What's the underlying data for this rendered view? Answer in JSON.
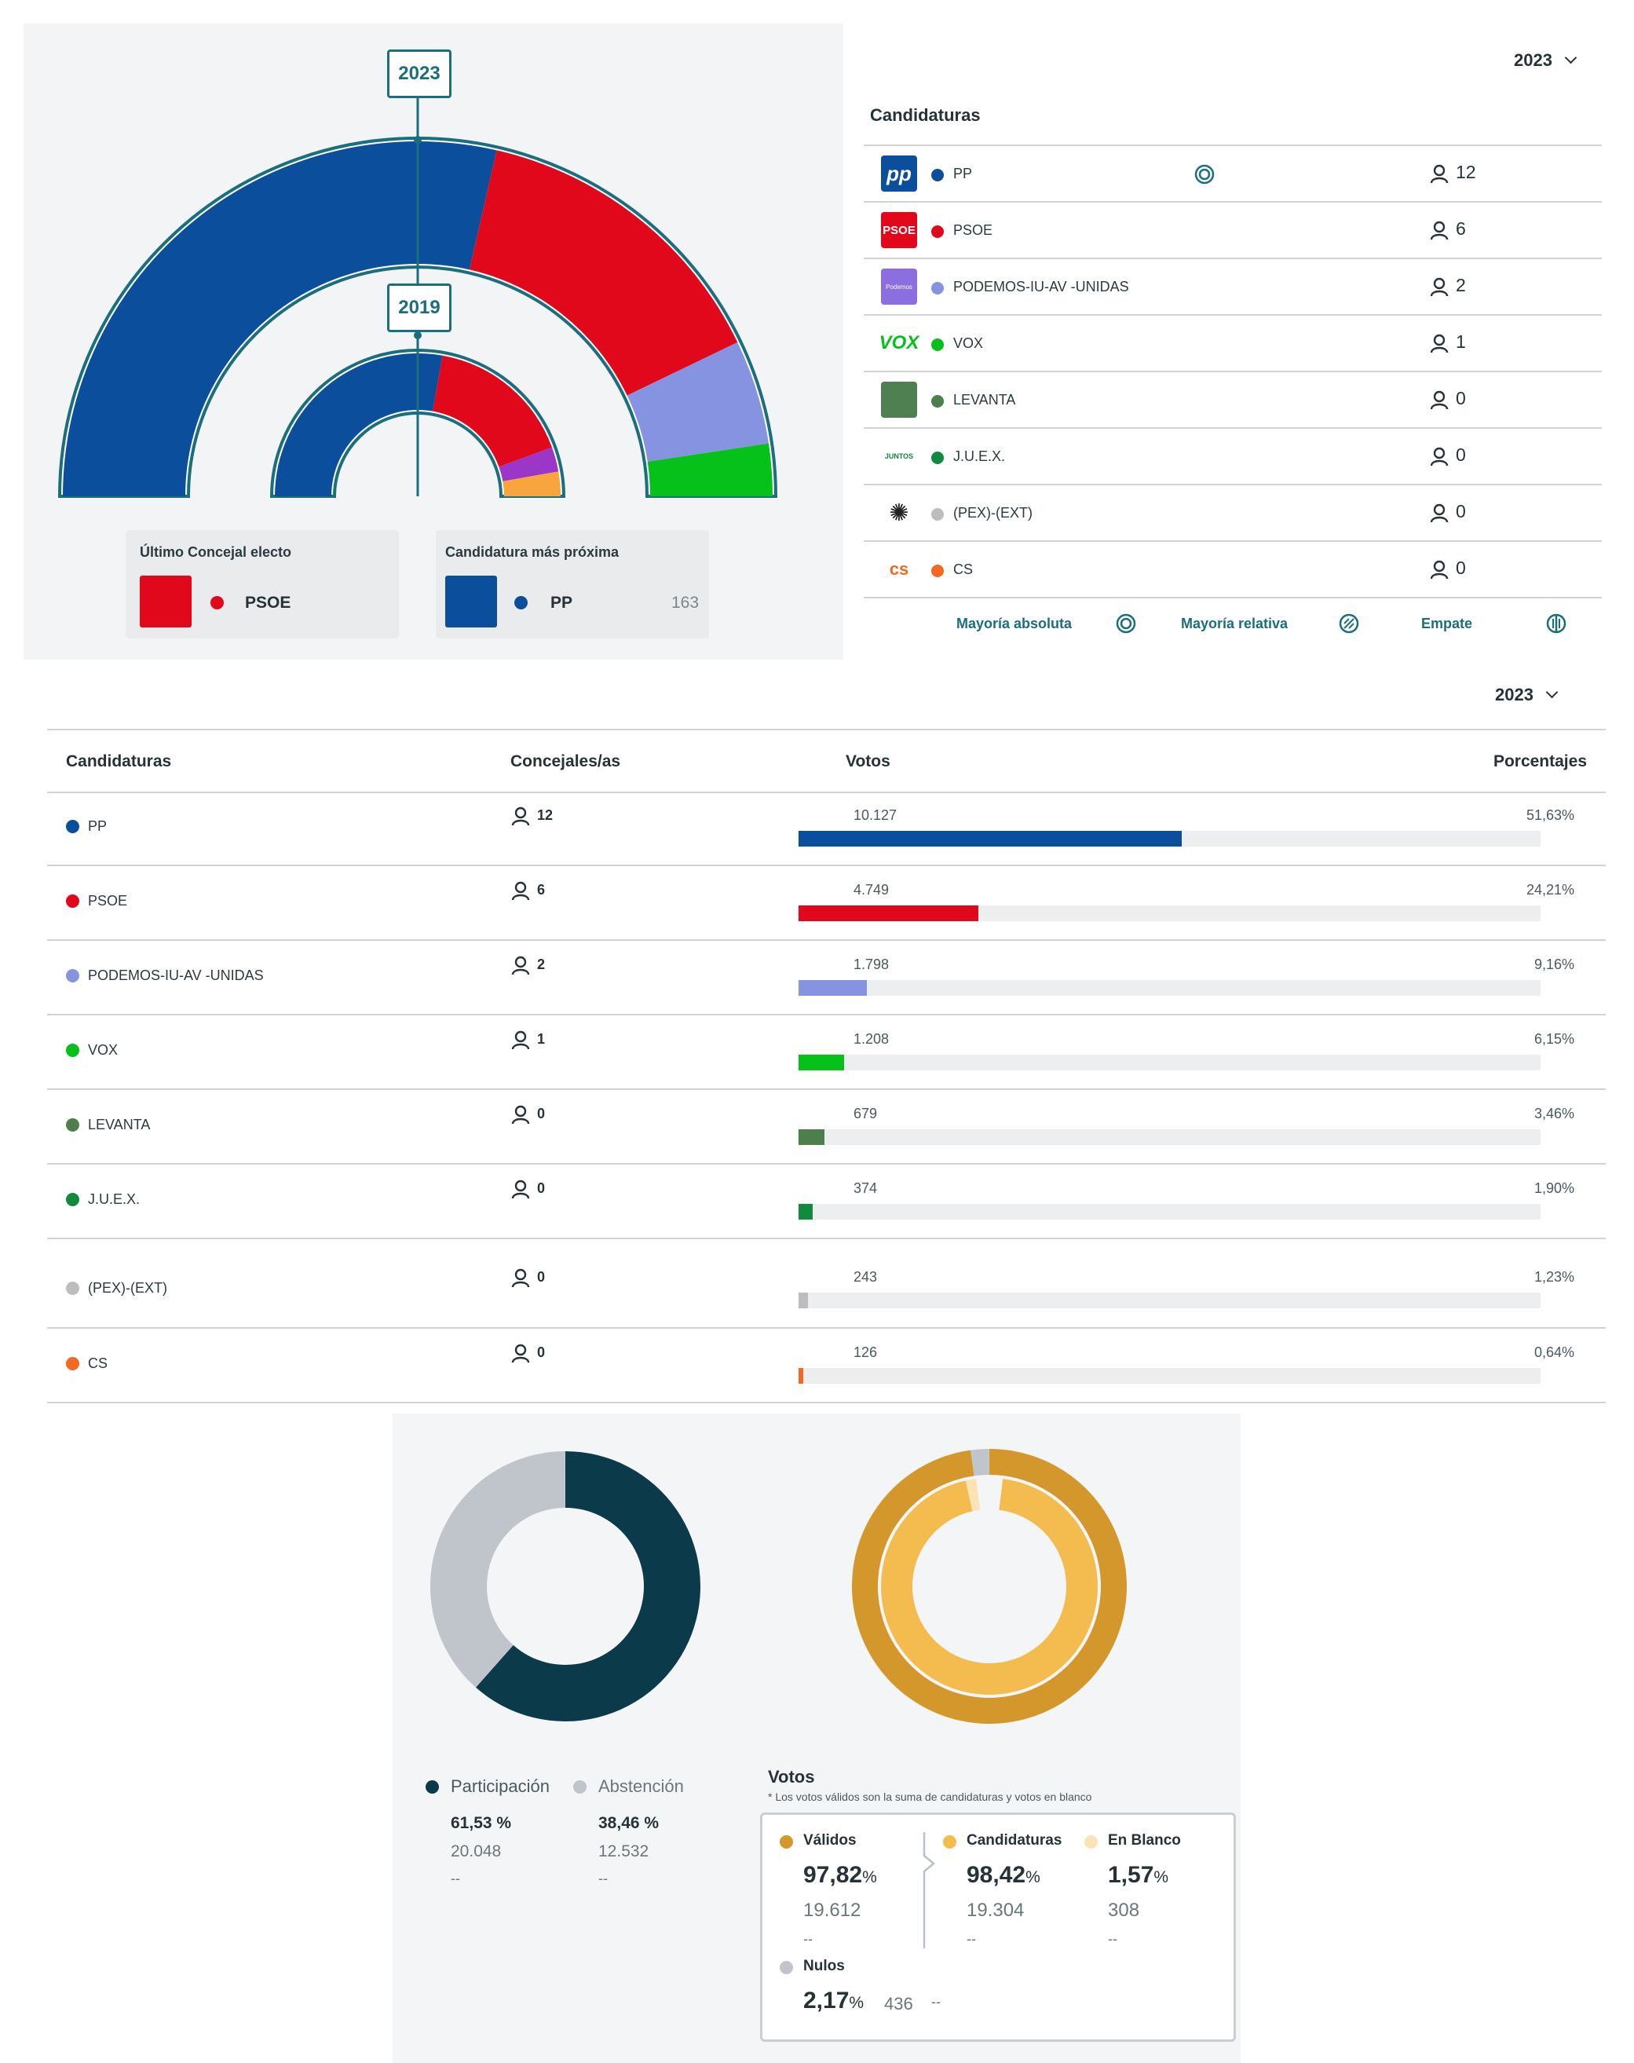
{
  "hemicycle": {
    "year_outer": "2023",
    "year_inner": "2019",
    "outer_arcs": [
      {
        "party": "PP",
        "seats": 12,
        "color": "#0b4f9c"
      },
      {
        "party": "PSOE",
        "seats": 6,
        "color": "#e1081c"
      },
      {
        "party": "PODEMOS-IU-AV -UNIDAS",
        "seats": 2,
        "color": "#8693e0"
      },
      {
        "party": "VOX",
        "seats": 1,
        "color": "#06c11a"
      }
    ],
    "inner_arcs": [
      {
        "party": "PP",
        "seats": 10,
        "color": "#0b4f9c"
      },
      {
        "party": "PSOE",
        "seats": 6,
        "color": "#e1081c"
      },
      {
        "party": "Purple",
        "seats": 1,
        "color": "#9b36c9"
      },
      {
        "party": "Orange",
        "seats": 1,
        "color": "#f9a53e"
      }
    ],
    "ultimo": {
      "title": "Último Concejal electo",
      "party": "PSOE",
      "color": "#e1081c"
    },
    "proxima": {
      "title": "Candidatura más próxima",
      "party": "PP",
      "color": "#0b4f9c",
      "votes": "163"
    }
  },
  "candidaturas": {
    "year": "2023",
    "title": "Candidaturas",
    "rows": [
      {
        "name": "PP",
        "color": "#0b4f9c",
        "seats": "12",
        "logo": "pp",
        "logo_color": "#0b4f9c",
        "logo_text": "pp",
        "majority": true
      },
      {
        "name": "PSOE",
        "color": "#e1081c",
        "seats": "6",
        "logo": "psoe",
        "logo_color": "#e1081c",
        "logo_text": "PSOE"
      },
      {
        "name": "PODEMOS-IU-AV -UNIDAS",
        "color": "#8693e0",
        "seats": "2",
        "logo": "podemos",
        "logo_color": "#8b6ee0",
        "logo_text": "Podemos"
      },
      {
        "name": "VOX",
        "color": "#06c11a",
        "seats": "1",
        "logo": "vox",
        "logo_color": "#ffffff",
        "logo_text": "VOX"
      },
      {
        "name": "LEVANTA",
        "color": "#4d7f4d",
        "seats": "0",
        "logo": "levanta",
        "logo_color": "#4f8052",
        "logo_text": ""
      },
      {
        "name": "J.U.E.X.",
        "color": "#118a3e",
        "seats": "0",
        "logo": "juex",
        "logo_color": "#ffffff",
        "logo_text": "JUNTOS"
      },
      {
        "name": "(PEX)-(EXT)",
        "color": "#bdbdbd",
        "seats": "0",
        "logo": "pex",
        "logo_color": "#ffffff",
        "logo_text": "✺"
      },
      {
        "name": "CS",
        "color": "#f26a21",
        "seats": "0",
        "logo": "cs",
        "logo_color": "#ffffff",
        "logo_text": "cs"
      }
    ],
    "legend": {
      "abs": "Mayoría absoluta",
      "rel": "Mayoría relativa",
      "tie": "Empate"
    }
  },
  "results": {
    "year": "2023",
    "headers": {
      "cand": "Candidaturas",
      "seats": "Concejales/as",
      "votes": "Votos",
      "pct": "Porcentajes"
    },
    "rows": [
      {
        "name": "PP",
        "color": "#0b4f9c",
        "seats": "12",
        "votes": "10.127",
        "pct": "51,63%",
        "share": 51.63
      },
      {
        "name": "PSOE",
        "color": "#e1081c",
        "seats": "6",
        "votes": "4.749",
        "pct": "24,21%",
        "share": 24.21
      },
      {
        "name": "PODEMOS-IU-AV -UNIDAS",
        "color": "#8693e0",
        "seats": "2",
        "votes": "1.798",
        "pct": "9,16%",
        "share": 9.16
      },
      {
        "name": "VOX",
        "color": "#06c11a",
        "seats": "1",
        "votes": "1.208",
        "pct": "6,15%",
        "share": 6.15
      },
      {
        "name": "LEVANTA",
        "color": "#4d7f4d",
        "seats": "0",
        "votes": "679",
        "pct": "3,46%",
        "share": 3.46
      },
      {
        "name": "J.U.E.X.",
        "color": "#118a3e",
        "seats": "0",
        "votes": "374",
        "pct": "1,90%",
        "share": 1.9
      },
      {
        "name": "(PEX)-(EXT)",
        "color": "#bdbdbd",
        "seats": "0",
        "votes": "243",
        "pct": "1,23%",
        "share": 1.23
      },
      {
        "name": "CS",
        "color": "#f26a21",
        "seats": "0",
        "votes": "126",
        "pct": "0,64%",
        "share": 0.64
      }
    ]
  },
  "turnout": {
    "participacion": {
      "label": "Participación",
      "pct": "61,53 %",
      "count": "20.048",
      "prev": "--",
      "color": "#0b3a4a",
      "share": 61.53
    },
    "abstencion": {
      "label": "Abstención",
      "pct": "38,46 %",
      "count": "12.532",
      "prev": "--",
      "color": "#c0c5cc",
      "share": 38.46
    }
  },
  "votos": {
    "title": "Votos",
    "note": "* Los votos válidos son la suma de candidaturas y votos en blanco",
    "validos": {
      "label": "Válidos",
      "pct": "97,82",
      "unit": "%",
      "count": "19.612",
      "prev": "--",
      "color": "#d3972b",
      "share": 97.82
    },
    "candidaturas": {
      "label": "Candidaturas",
      "pct": "98,42",
      "unit": "%",
      "count": "19.304",
      "prev": "--",
      "color": "#f4bb4f",
      "share": 98.42
    },
    "blanco": {
      "label": "En Blanco",
      "pct": "1,57",
      "unit": "%",
      "count": "308",
      "prev": "--",
      "color": "#fbe3b5",
      "share": 1.57
    },
    "nulos": {
      "label": "Nulos",
      "pct": "2,17",
      "unit": "%",
      "count": "436",
      "prev": "--",
      "color": "#c0c5cc",
      "share": 2.17
    }
  }
}
